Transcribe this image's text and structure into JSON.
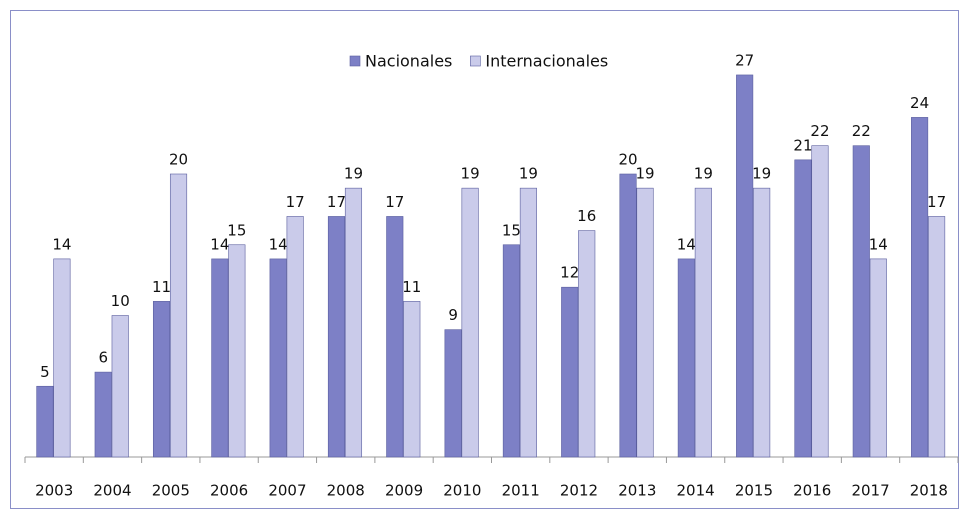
{
  "chart_data": {
    "type": "bar",
    "categories": [
      "2003",
      "2004",
      "2005",
      "2006",
      "2007",
      "2008",
      "2009",
      "2010",
      "2011",
      "2012",
      "2013",
      "2014",
      "2015",
      "2016",
      "2017",
      "2018"
    ],
    "series": [
      {
        "name": "Nacionales",
        "color": "#7d80c6",
        "values": [
          5,
          6,
          11,
          14,
          14,
          17,
          17,
          9,
          15,
          12,
          20,
          14,
          27,
          21,
          22,
          24
        ]
      },
      {
        "name": "Internacionales",
        "color": "#cacbea",
        "values": [
          14,
          10,
          20,
          15,
          17,
          19,
          11,
          19,
          19,
          16,
          19,
          19,
          19,
          22,
          14,
          17
        ]
      }
    ],
    "ylim": [
      0,
      30
    ],
    "legend": "top"
  }
}
